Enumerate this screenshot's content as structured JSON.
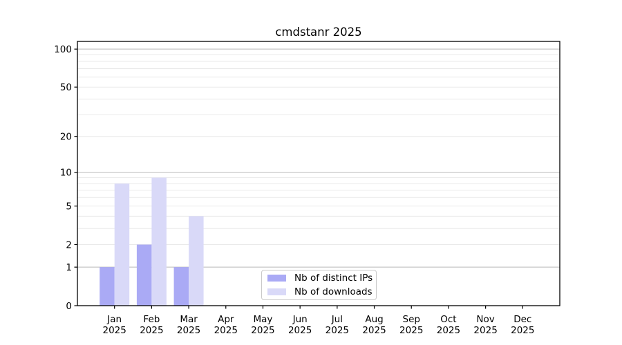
{
  "chart_data": {
    "type": "bar",
    "title": "cmdstanr 2025",
    "categories": [
      "Jan",
      "Feb",
      "Mar",
      "Apr",
      "May",
      "Jun",
      "Jul",
      "Aug",
      "Sep",
      "Oct",
      "Nov",
      "Dec"
    ],
    "x_year_label": "2025",
    "series": [
      {
        "name": "Nb of distinct IPs",
        "color": "#aaaaf5",
        "values": [
          1,
          2,
          1,
          0,
          0,
          0,
          0,
          0,
          0,
          0,
          0,
          0
        ]
      },
      {
        "name": "Nb of downloads",
        "color": "#d9d9f8",
        "values": [
          8,
          9,
          4,
          0,
          0,
          0,
          0,
          0,
          0,
          0,
          0,
          0
        ]
      }
    ],
    "yscale": "log1p",
    "ylim": [
      0,
      115
    ],
    "yticks": [
      0,
      1,
      2,
      5,
      10,
      20,
      50,
      100
    ],
    "major_gridlines": [
      1,
      10,
      100
    ],
    "minor_gridlines": [
      2,
      3,
      4,
      5,
      6,
      7,
      8,
      9,
      20,
      30,
      40,
      50,
      60,
      70,
      80,
      90
    ],
    "xlabel": "",
    "ylabel": "",
    "grid": true,
    "legend": {
      "position": "lower-center-inside"
    },
    "colors": {
      "major_grid": "#b9b9b9",
      "minor_grid": "#e9e9e9",
      "axis": "#000000",
      "text": "#000000",
      "background": "#ffffff",
      "legend_border": "#c9c9c9"
    }
  }
}
